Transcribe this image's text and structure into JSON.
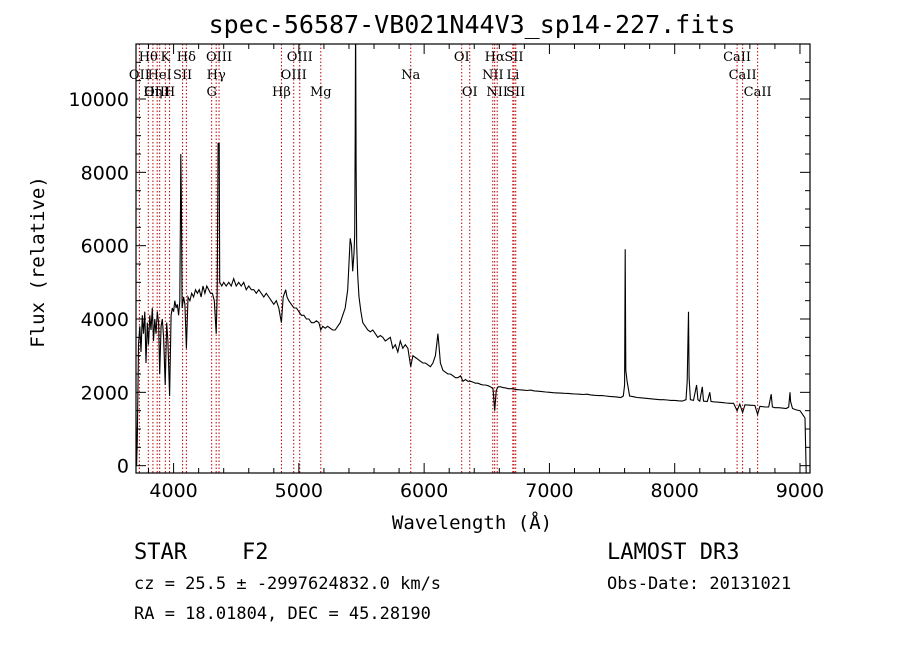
{
  "chart_data": {
    "type": "line",
    "title": "spec-56587-VB021N44V3_sp14-227.fits",
    "xlabel": "Wavelength (Å)",
    "ylabel": "Flux (relative)",
    "xlim": [
      3700,
      9080
    ],
    "ylim": [
      -200,
      11500
    ],
    "xticks": [
      4000,
      5000,
      6000,
      7000,
      8000,
      9000
    ],
    "yticks": [
      0,
      2000,
      4000,
      6000,
      8000,
      10000
    ],
    "x_minor_step": 200,
    "y_minor_step": 500,
    "line_color": "#000000",
    "marker_color": "#c00000",
    "spectrum": [
      [
        3700,
        1400
      ],
      [
        3705,
        0
      ],
      [
        3710,
        700
      ],
      [
        3720,
        3300
      ],
      [
        3730,
        3800
      ],
      [
        3740,
        3100
      ],
      [
        3750,
        4100
      ],
      [
        3760,
        3600
      ],
      [
        3770,
        4200
      ],
      [
        3780,
        2800
      ],
      [
        3790,
        3900
      ],
      [
        3800,
        3300
      ],
      [
        3810,
        4100
      ],
      [
        3820,
        3700
      ],
      [
        3830,
        4300
      ],
      [
        3840,
        3400
      ],
      [
        3850,
        4000
      ],
      [
        3860,
        3600
      ],
      [
        3870,
        4200
      ],
      [
        3880,
        3900
      ],
      [
        3889,
        2500
      ],
      [
        3900,
        3800
      ],
      [
        3910,
        4000
      ],
      [
        3920,
        3500
      ],
      [
        3933,
        2200
      ],
      [
        3945,
        3900
      ],
      [
        3955,
        3400
      ],
      [
        3968,
        1900
      ],
      [
        3980,
        4100
      ],
      [
        3990,
        4300
      ],
      [
        4000,
        4200
      ],
      [
        4010,
        4500
      ],
      [
        4020,
        4300
      ],
      [
        4030,
        4400
      ],
      [
        4040,
        4100
      ],
      [
        4050,
        4500
      ],
      [
        4055,
        7000
      ],
      [
        4058,
        8500
      ],
      [
        4062,
        7200
      ],
      [
        4068,
        4300
      ],
      [
        4080,
        4600
      ],
      [
        4090,
        4400
      ],
      [
        4102,
        3200
      ],
      [
        4115,
        4600
      ],
      [
        4130,
        4500
      ],
      [
        4145,
        4700
      ],
      [
        4160,
        4600
      ],
      [
        4175,
        4800
      ],
      [
        4190,
        4700
      ],
      [
        4205,
        4800
      ],
      [
        4220,
        4600
      ],
      [
        4235,
        4900
      ],
      [
        4250,
        4700
      ],
      [
        4265,
        4900
      ],
      [
        4280,
        4800
      ],
      [
        4295,
        4700
      ],
      [
        4310,
        4700
      ],
      [
        4325,
        4500
      ],
      [
        4340,
        3600
      ],
      [
        4348,
        4700
      ],
      [
        4355,
        8800
      ],
      [
        4360,
        8700
      ],
      [
        4364,
        8800
      ],
      [
        4368,
        5000
      ],
      [
        4385,
        4900
      ],
      [
        4400,
        5000
      ],
      [
        4420,
        4900
      ],
      [
        4440,
        5000
      ],
      [
        4460,
        4900
      ],
      [
        4480,
        5100
      ],
      [
        4500,
        4900
      ],
      [
        4520,
        5000
      ],
      [
        4540,
        4900
      ],
      [
        4560,
        5000
      ],
      [
        4580,
        4800
      ],
      [
        4600,
        4900
      ],
      [
        4620,
        4800
      ],
      [
        4640,
        4800
      ],
      [
        4660,
        4700
      ],
      [
        4680,
        4800
      ],
      [
        4700,
        4700
      ],
      [
        4720,
        4600
      ],
      [
        4740,
        4700
      ],
      [
        4760,
        4600
      ],
      [
        4780,
        4500
      ],
      [
        4800,
        4400
      ],
      [
        4820,
        4500
      ],
      [
        4840,
        4300
      ],
      [
        4861,
        3900
      ],
      [
        4875,
        4600
      ],
      [
        4885,
        4700
      ],
      [
        4895,
        4800
      ],
      [
        4905,
        4600
      ],
      [
        4920,
        4500
      ],
      [
        4940,
        4400
      ],
      [
        4960,
        4300
      ],
      [
        4980,
        4300
      ],
      [
        5000,
        4200
      ],
      [
        5020,
        4100
      ],
      [
        5040,
        4100
      ],
      [
        5060,
        4000
      ],
      [
        5080,
        4000
      ],
      [
        5100,
        3900
      ],
      [
        5120,
        3900
      ],
      [
        5140,
        3950
      ],
      [
        5160,
        3900
      ],
      [
        5175,
        3700
      ],
      [
        5190,
        3800
      ],
      [
        5210,
        3750
      ],
      [
        5230,
        3800
      ],
      [
        5250,
        3750
      ],
      [
        5270,
        3700
      ],
      [
        5290,
        3700
      ],
      [
        5310,
        3800
      ],
      [
        5330,
        3900
      ],
      [
        5350,
        4100
      ],
      [
        5370,
        4300
      ],
      [
        5390,
        4800
      ],
      [
        5410,
        6200
      ],
      [
        5420,
        6000
      ],
      [
        5430,
        5300
      ],
      [
        5440,
        5800
      ],
      [
        5446,
        6300
      ],
      [
        5450,
        9000
      ],
      [
        5452,
        11500
      ],
      [
        5454,
        11500
      ],
      [
        5457,
        8200
      ],
      [
        5462,
        6000
      ],
      [
        5470,
        5200
      ],
      [
        5480,
        4600
      ],
      [
        5495,
        4200
      ],
      [
        5510,
        3900
      ],
      [
        5530,
        3800
      ],
      [
        5550,
        3700
      ],
      [
        5570,
        3650
      ],
      [
        5590,
        3700
      ],
      [
        5610,
        3600
      ],
      [
        5630,
        3500
      ],
      [
        5650,
        3550
      ],
      [
        5670,
        3500
      ],
      [
        5690,
        3400
      ],
      [
        5710,
        3450
      ],
      [
        5730,
        3500
      ],
      [
        5750,
        3200
      ],
      [
        5770,
        3300
      ],
      [
        5790,
        3100
      ],
      [
        5810,
        3400
      ],
      [
        5830,
        3200
      ],
      [
        5850,
        3300
      ],
      [
        5870,
        3200
      ],
      [
        5893,
        2700
      ],
      [
        5910,
        3000
      ],
      [
        5930,
        2950
      ],
      [
        5950,
        2900
      ],
      [
        5970,
        2850
      ],
      [
        5990,
        2800
      ],
      [
        6010,
        2800
      ],
      [
        6030,
        2750
      ],
      [
        6050,
        2700
      ],
      [
        6070,
        2800
      ],
      [
        6090,
        3000
      ],
      [
        6100,
        3300
      ],
      [
        6110,
        3600
      ],
      [
        6120,
        3200
      ],
      [
        6130,
        2800
      ],
      [
        6150,
        2600
      ],
      [
        6170,
        2550
      ],
      [
        6190,
        2500
      ],
      [
        6210,
        2500
      ],
      [
        6230,
        2450
      ],
      [
        6250,
        2400
      ],
      [
        6270,
        2400
      ],
      [
        6290,
        2450
      ],
      [
        6310,
        2300
      ],
      [
        6330,
        2350
      ],
      [
        6350,
        2300
      ],
      [
        6370,
        2300
      ],
      [
        6390,
        2280
      ],
      [
        6410,
        2250
      ],
      [
        6430,
        2250
      ],
      [
        6450,
        2220
      ],
      [
        6470,
        2200
      ],
      [
        6490,
        2200
      ],
      [
        6510,
        2180
      ],
      [
        6530,
        2150
      ],
      [
        6550,
        2100
      ],
      [
        6563,
        1500
      ],
      [
        6575,
        2050
      ],
      [
        6590,
        2150
      ],
      [
        6610,
        2150
      ],
      [
        6630,
        2130
      ],
      [
        6650,
        2120
      ],
      [
        6670,
        2100
      ],
      [
        6700,
        2100
      ],
      [
        6730,
        2080
      ],
      [
        6760,
        2070
      ],
      [
        6790,
        2060
      ],
      [
        6820,
        2050
      ],
      [
        6850,
        2060
      ],
      [
        6880,
        2040
      ],
      [
        6910,
        2030
      ],
      [
        6940,
        2020
      ],
      [
        6970,
        2010
      ],
      [
        7000,
        2000
      ],
      [
        7030,
        1990
      ],
      [
        7060,
        1985
      ],
      [
        7090,
        1980
      ],
      [
        7120,
        1975
      ],
      [
        7150,
        1970
      ],
      [
        7180,
        1960
      ],
      [
        7210,
        1955
      ],
      [
        7240,
        1950
      ],
      [
        7270,
        1940
      ],
      [
        7300,
        1950
      ],
      [
        7330,
        1930
      ],
      [
        7360,
        1920
      ],
      [
        7390,
        1910
      ],
      [
        7420,
        1910
      ],
      [
        7450,
        1900
      ],
      [
        7480,
        1890
      ],
      [
        7510,
        1880
      ],
      [
        7540,
        1870
      ],
      [
        7570,
        1860
      ],
      [
        7590,
        1900
      ],
      [
        7600,
        2200
      ],
      [
        7605,
        5900
      ],
      [
        7610,
        2600
      ],
      [
        7620,
        2300
      ],
      [
        7640,
        1900
      ],
      [
        7670,
        1880
      ],
      [
        7700,
        1860
      ],
      [
        7730,
        1850
      ],
      [
        7760,
        1840
      ],
      [
        7790,
        1830
      ],
      [
        7820,
        1820
      ],
      [
        7850,
        1810
      ],
      [
        7880,
        1800
      ],
      [
        7910,
        1800
      ],
      [
        7940,
        1790
      ],
      [
        7970,
        1780
      ],
      [
        8000,
        1780
      ],
      [
        8030,
        1770
      ],
      [
        8060,
        1760
      ],
      [
        8090,
        1800
      ],
      [
        8100,
        2300
      ],
      [
        8110,
        4200
      ],
      [
        8115,
        2400
      ],
      [
        8125,
        1800
      ],
      [
        8150,
        1780
      ],
      [
        8175,
        2200
      ],
      [
        8185,
        1800
      ],
      [
        8200,
        1760
      ],
      [
        8220,
        2150
      ],
      [
        8230,
        1760
      ],
      [
        8260,
        1750
      ],
      [
        8280,
        2000
      ],
      [
        8290,
        1750
      ],
      [
        8320,
        1740
      ],
      [
        8350,
        1730
      ],
      [
        8380,
        1720
      ],
      [
        8410,
        1710
      ],
      [
        8440,
        1700
      ],
      [
        8470,
        1700
      ],
      [
        8498,
        1500
      ],
      [
        8520,
        1680
      ],
      [
        8542,
        1450
      ],
      [
        8560,
        1660
      ],
      [
        8600,
        1650
      ],
      [
        8640,
        1640
      ],
      [
        8662,
        1400
      ],
      [
        8680,
        1620
      ],
      [
        8720,
        1600
      ],
      [
        8750,
        1600
      ],
      [
        8770,
        1950
      ],
      [
        8780,
        1600
      ],
      [
        8800,
        1580
      ],
      [
        8830,
        1580
      ],
      [
        8860,
        1570
      ],
      [
        8890,
        1560
      ],
      [
        8910,
        1600
      ],
      [
        8920,
        2000
      ],
      [
        8925,
        1750
      ],
      [
        8940,
        1560
      ],
      [
        8970,
        1520
      ],
      [
        9000,
        1500
      ],
      [
        9020,
        1400
      ],
      [
        9040,
        1300
      ],
      [
        9050,
        -200
      ]
    ],
    "lines": [
      {
        "label": "Hθ",
        "x": 3798,
        "row": 0
      },
      {
        "label": "K",
        "x": 3934,
        "row": 0
      },
      {
        "label": "Hδ",
        "x": 4102,
        "row": 0
      },
      {
        "label": "OIII",
        "x": 4363,
        "row": 0
      },
      {
        "label": "OIII",
        "x": 5007,
        "row": 0
      },
      {
        "label": "OI",
        "x": 6300,
        "row": 0
      },
      {
        "label": "Hα",
        "x": 6563,
        "row": 0
      },
      {
        "label": "SII",
        "x": 6717,
        "row": 0
      },
      {
        "label": "CaII",
        "x": 8498,
        "row": 0
      },
      {
        "label": "OII",
        "x": 3727,
        "row": 1
      },
      {
        "label": "HeI",
        "x": 3889,
        "row": 1
      },
      {
        "label": "SII",
        "x": 4072,
        "row": 1
      },
      {
        "label": "Hγ",
        "x": 4340,
        "row": 1
      },
      {
        "label": "OIII",
        "x": 4959,
        "row": 1
      },
      {
        "label": "Na",
        "x": 5893,
        "row": 1
      },
      {
        "label": "NII",
        "x": 6548,
        "row": 1
      },
      {
        "label": "Li",
        "x": 6708,
        "row": 1
      },
      {
        "label": "CaII",
        "x": 8542,
        "row": 1
      },
      {
        "label": "OIII",
        "x": 3869,
        "row": 2
      },
      {
        "label": "Hη",
        "x": 3835,
        "row": 2
      },
      {
        "label": "H",
        "x": 3968,
        "row": 2
      },
      {
        "label": "G",
        "x": 4304,
        "row": 2
      },
      {
        "label": "Hβ",
        "x": 4861,
        "row": 2
      },
      {
        "label": "Mg",
        "x": 5175,
        "row": 2
      },
      {
        "label": "OI",
        "x": 6364,
        "row": 2
      },
      {
        "label": "NII",
        "x": 6583,
        "row": 2
      },
      {
        "label": "SII",
        "x": 6731,
        "row": 2
      },
      {
        "label": "CaII",
        "x": 8662,
        "row": 2
      }
    ]
  },
  "info": {
    "class_label": "STAR",
    "subclass": "F2",
    "survey": "LAMOST DR3",
    "cz_line": "cz = 25.5 ± -2997624832.0 km/s",
    "obs_date": "Obs-Date: 20131021",
    "coords": "RA =  18.01804, DEC =  45.28190"
  }
}
